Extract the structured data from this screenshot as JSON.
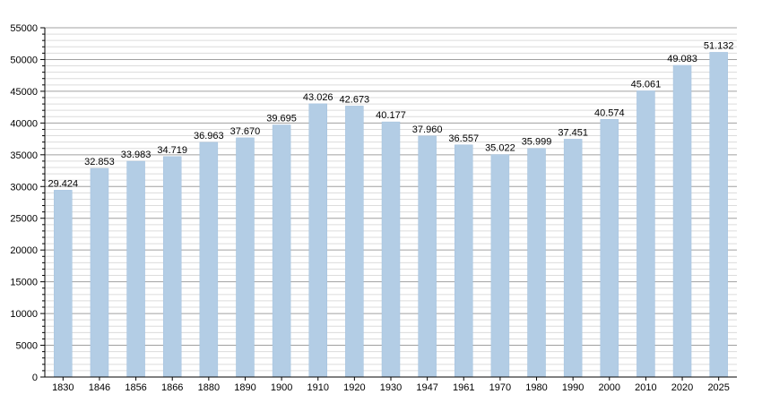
{
  "chart_data": {
    "type": "bar",
    "categories": [
      "1830",
      "1846",
      "1856",
      "1866",
      "1880",
      "1890",
      "1900",
      "1910",
      "1920",
      "1930",
      "1947",
      "1961",
      "1970",
      "1980",
      "1990",
      "2000",
      "2010",
      "2020",
      "2025"
    ],
    "values": [
      29424,
      32853,
      33983,
      34719,
      36963,
      37670,
      39695,
      43026,
      42673,
      40177,
      37960,
      36557,
      35022,
      35999,
      37451,
      40574,
      45061,
      49083,
      51132
    ],
    "data_labels": [
      "29.424",
      "32.853",
      "33.983",
      "34.719",
      "36.963",
      "37.670",
      "39.695",
      "43.026",
      "42.673",
      "40.177",
      "37.960",
      "36.557",
      "35.022",
      "35.999",
      "37.451",
      "40.574",
      "45.061",
      "49.083",
      "51.132"
    ],
    "yticks": [
      "0",
      "5000",
      "10000",
      "15000",
      "20000",
      "25000",
      "30000",
      "35000",
      "40000",
      "45000",
      "50000",
      "55000"
    ],
    "ylim": [
      0,
      55000
    ],
    "grid": true,
    "title": "",
    "xlabel": "",
    "ylabel": "",
    "colors": {
      "bar": "#b3cde5",
      "bar_edge": "#a3c1de",
      "major_grid": "#a0a0a0",
      "minor_grid": "#dcdcdc",
      "axis": "#000000"
    }
  }
}
